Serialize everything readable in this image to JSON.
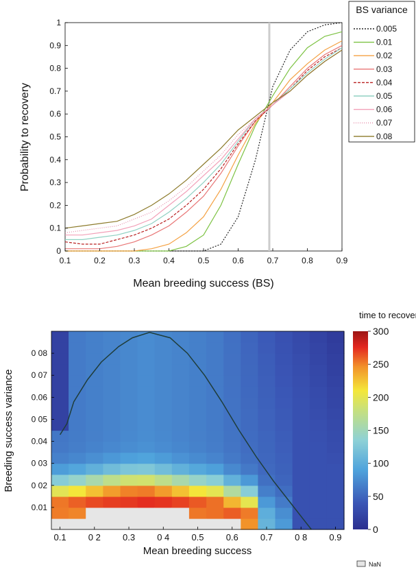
{
  "chart_data": [
    {
      "type": "line",
      "xlabel": "Mean breeding success (BS)",
      "ylabel": "Probability to recovery",
      "xlim": [
        0.1,
        0.9
      ],
      "ylim": [
        0,
        1
      ],
      "xticks": [
        "0.1",
        "0.2",
        "0.3",
        "0.4",
        "0.5",
        "0.6",
        "0.7",
        "0.8",
        "0.9"
      ],
      "yticks": [
        "0",
        "0.1",
        "0.2",
        "0.3",
        "0.4",
        "0.5",
        "0.6",
        "0.7",
        "0.8",
        "0.9",
        "1"
      ],
      "legend": {
        "title": "BS variance",
        "placement": "outside-top-right"
      },
      "vertical_marker": {
        "x": 0.69,
        "color": "#cccccc"
      },
      "x": [
        0.1,
        0.15,
        0.2,
        0.25,
        0.3,
        0.35,
        0.4,
        0.45,
        0.5,
        0.55,
        0.6,
        0.65,
        0.7,
        0.75,
        0.8,
        0.85,
        0.9
      ],
      "series": [
        {
          "name": "0.005",
          "color": "#222222",
          "dash": "2,2",
          "values": [
            0.0,
            0.0,
            0.0,
            0.0,
            0.0,
            0.0,
            0.0,
            0.0,
            0.0,
            0.03,
            0.15,
            0.4,
            0.72,
            0.88,
            0.96,
            0.99,
            1.0
          ]
        },
        {
          "name": "0.01",
          "color": "#7cc242",
          "dash": "",
          "values": [
            0.0,
            0.0,
            0.0,
            0.0,
            0.0,
            0.0,
            0.0,
            0.02,
            0.07,
            0.2,
            0.38,
            0.55,
            0.68,
            0.8,
            0.89,
            0.94,
            0.96
          ]
        },
        {
          "name": "0.02",
          "color": "#f4a142",
          "dash": "",
          "values": [
            0.0,
            0.0,
            0.0,
            0.0,
            0.0,
            0.01,
            0.03,
            0.08,
            0.15,
            0.27,
            0.42,
            0.56,
            0.65,
            0.75,
            0.82,
            0.88,
            0.92
          ]
        },
        {
          "name": "0.03",
          "color": "#e87575",
          "dash": "",
          "values": [
            0.01,
            0.01,
            0.01,
            0.02,
            0.04,
            0.07,
            0.11,
            0.17,
            0.24,
            0.34,
            0.46,
            0.57,
            0.64,
            0.72,
            0.8,
            0.86,
            0.9
          ]
        },
        {
          "name": "0.04",
          "color": "#b81f1f",
          "dash": "4,2",
          "values": [
            0.04,
            0.03,
            0.03,
            0.05,
            0.07,
            0.1,
            0.14,
            0.2,
            0.27,
            0.36,
            0.47,
            0.57,
            0.64,
            0.71,
            0.79,
            0.85,
            0.89
          ]
        },
        {
          "name": "0.05",
          "color": "#8fd1c2",
          "dash": "",
          "values": [
            0.05,
            0.05,
            0.06,
            0.07,
            0.09,
            0.12,
            0.17,
            0.23,
            0.3,
            0.38,
            0.48,
            0.58,
            0.64,
            0.71,
            0.78,
            0.84,
            0.89
          ]
        },
        {
          "name": "0.06",
          "color": "#f2a0b8",
          "dash": "",
          "values": [
            0.07,
            0.07,
            0.08,
            0.09,
            0.11,
            0.14,
            0.2,
            0.26,
            0.33,
            0.4,
            0.49,
            0.58,
            0.64,
            0.7,
            0.77,
            0.83,
            0.88
          ]
        },
        {
          "name": "0.07",
          "color": "#e58aa8",
          "dash": "1,2",
          "values": [
            0.08,
            0.09,
            0.1,
            0.11,
            0.14,
            0.17,
            0.22,
            0.28,
            0.35,
            0.42,
            0.51,
            0.58,
            0.64,
            0.7,
            0.77,
            0.83,
            0.88
          ]
        },
        {
          "name": "0.08",
          "color": "#8c7a2a",
          "dash": "",
          "values": [
            0.1,
            0.11,
            0.12,
            0.13,
            0.16,
            0.2,
            0.25,
            0.31,
            0.38,
            0.45,
            0.53,
            0.59,
            0.65,
            0.7,
            0.77,
            0.83,
            0.88
          ]
        }
      ]
    },
    {
      "type": "heatmap",
      "xlabel": "Mean breeding success",
      "ylabel": "Breeding success variance",
      "xlim": [
        0.075,
        0.925
      ],
      "ylim": [
        0,
        0.09
      ],
      "xticks": [
        0.1,
        0.2,
        0.3,
        0.4,
        0.5,
        0.6,
        0.7,
        0.8,
        0.9
      ],
      "xtick_labels": [
        "0.1",
        "0 2",
        "0.3",
        "0 4",
        "0.5",
        "0.6",
        "0.7",
        "0 8",
        "0.9"
      ],
      "yticks": [
        0.01,
        0.02,
        0.03,
        0.04,
        0.05,
        0.06,
        0.07,
        0.08
      ],
      "ytick_labels": [
        "0.01",
        "0 02",
        "0 03",
        "0.04",
        "0 05",
        "0.06",
        "0 07",
        "0 08"
      ],
      "colorbar": {
        "title": "time to recovery",
        "ticks": [
          0,
          50,
          100,
          150,
          200,
          250,
          300
        ],
        "tick_labels": [
          "0",
          "50",
          "100",
          "150",
          "200",
          "250",
          "300"
        ],
        "range": [
          0,
          300
        ],
        "nan_label": "NaN",
        "nan_color": "#e6e6e6"
      },
      "x_cells": [
        0.1,
        0.15,
        0.2,
        0.25,
        0.3,
        0.35,
        0.4,
        0.45,
        0.5,
        0.55,
        0.6,
        0.65,
        0.7,
        0.75,
        0.8,
        0.85,
        0.9
      ],
      "y_cells": [
        0.005,
        0.01,
        0.015,
        0.02,
        0.025,
        0.03,
        0.035,
        0.04,
        0.045,
        0.05,
        0.055,
        0.06,
        0.065,
        0.07,
        0.075,
        0.08,
        0.085,
        0.09
      ],
      "contour": {
        "color": "#1f3d3a",
        "points": [
          [
            0.1,
            0.043
          ],
          [
            0.12,
            0.048
          ],
          [
            0.14,
            0.058
          ],
          [
            0.18,
            0.068
          ],
          [
            0.22,
            0.076
          ],
          [
            0.27,
            0.083
          ],
          [
            0.31,
            0.087
          ],
          [
            0.36,
            0.0895
          ],
          [
            0.42,
            0.087
          ],
          [
            0.47,
            0.08
          ],
          [
            0.52,
            0.07
          ],
          [
            0.57,
            0.058
          ],
          [
            0.62,
            0.045
          ],
          [
            0.67,
            0.033
          ],
          [
            0.72,
            0.022
          ],
          [
            0.77,
            0.012
          ],
          [
            0.81,
            0.004
          ],
          [
            0.83,
            0.0
          ]
        ]
      }
    }
  ]
}
